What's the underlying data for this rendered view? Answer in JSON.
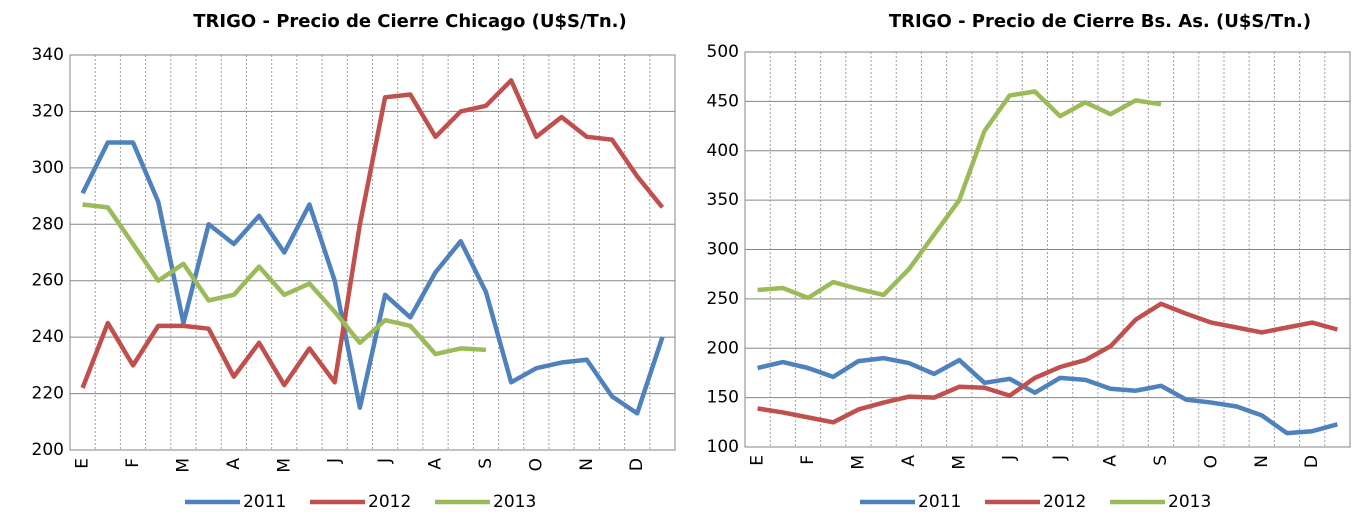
{
  "chart_data": [
    {
      "type": "line",
      "title": "TRIGO - Precio de Cierre Chicago (U$S/Tn.)",
      "categories": [
        "E",
        null,
        "F",
        null,
        "M",
        null,
        "A",
        null,
        "M",
        null,
        "J",
        null,
        "J",
        null,
        "A",
        null,
        "S",
        null,
        "O",
        null,
        "N",
        null,
        "D",
        null
      ],
      "series": [
        {
          "name": "2011",
          "color": "#4f81bd",
          "values": [
            291,
            309,
            309,
            288,
            245,
            280,
            273,
            283,
            270,
            287,
            260,
            215,
            255,
            247,
            263,
            274,
            256,
            224,
            229,
            231,
            232,
            219,
            213,
            240
          ]
        },
        {
          "name": "2012",
          "color": "#c0504d",
          "values": [
            222,
            245,
            230,
            244,
            244,
            243,
            226,
            238,
            223,
            236,
            224,
            280,
            325,
            326,
            311,
            320,
            322,
            331,
            311,
            318,
            311,
            310,
            297,
            286
          ]
        },
        {
          "name": "2013",
          "color": "#9bbb59",
          "values": [
            287,
            286,
            273,
            260,
            266,
            253,
            255,
            265,
            255,
            259,
            249,
            238,
            246,
            244,
            234,
            236,
            235.5,
            null,
            null,
            null,
            null,
            null,
            null,
            null
          ]
        }
      ],
      "ylim": [
        200,
        340
      ],
      "yticks": [
        200,
        220,
        240,
        260,
        280,
        300,
        320,
        340
      ],
      "grid": true,
      "legend": "bottom"
    },
    {
      "type": "line",
      "title": "TRIGO - Precio de Cierre Bs. As. (U$S/Tn.)",
      "categories": [
        "E",
        null,
        "F",
        null,
        "M",
        null,
        "A",
        null,
        "M",
        null,
        "J",
        null,
        "J",
        null,
        "A",
        null,
        "S",
        null,
        "O",
        null,
        "N",
        null,
        "D",
        null
      ],
      "series": [
        {
          "name": "2011",
          "color": "#4f81bd",
          "values": [
            180,
            186,
            180,
            171,
            187,
            190,
            185,
            174,
            188,
            165,
            169,
            155,
            170,
            168,
            159,
            157,
            162,
            148,
            145,
            141,
            132,
            114,
            116,
            123
          ]
        },
        {
          "name": "2012",
          "color": "#c0504d",
          "values": [
            139,
            135,
            130,
            125,
            138,
            145,
            151,
            150,
            161,
            160,
            152,
            170,
            181,
            188,
            202,
            229,
            245,
            235,
            226,
            221,
            216,
            221,
            226,
            219
          ]
        },
        {
          "name": "2013",
          "color": "#9bbb59",
          "values": [
            259,
            261,
            251,
            267,
            260,
            254,
            280,
            315,
            350,
            420,
            456,
            460,
            435,
            449,
            437,
            451,
            447,
            null,
            null,
            null,
            null,
            null,
            null,
            null
          ]
        }
      ],
      "ylim": [
        100,
        500
      ],
      "yticks": [
        100,
        150,
        200,
        250,
        300,
        350,
        400,
        450,
        500
      ],
      "grid": true,
      "legend": "bottom"
    }
  ]
}
